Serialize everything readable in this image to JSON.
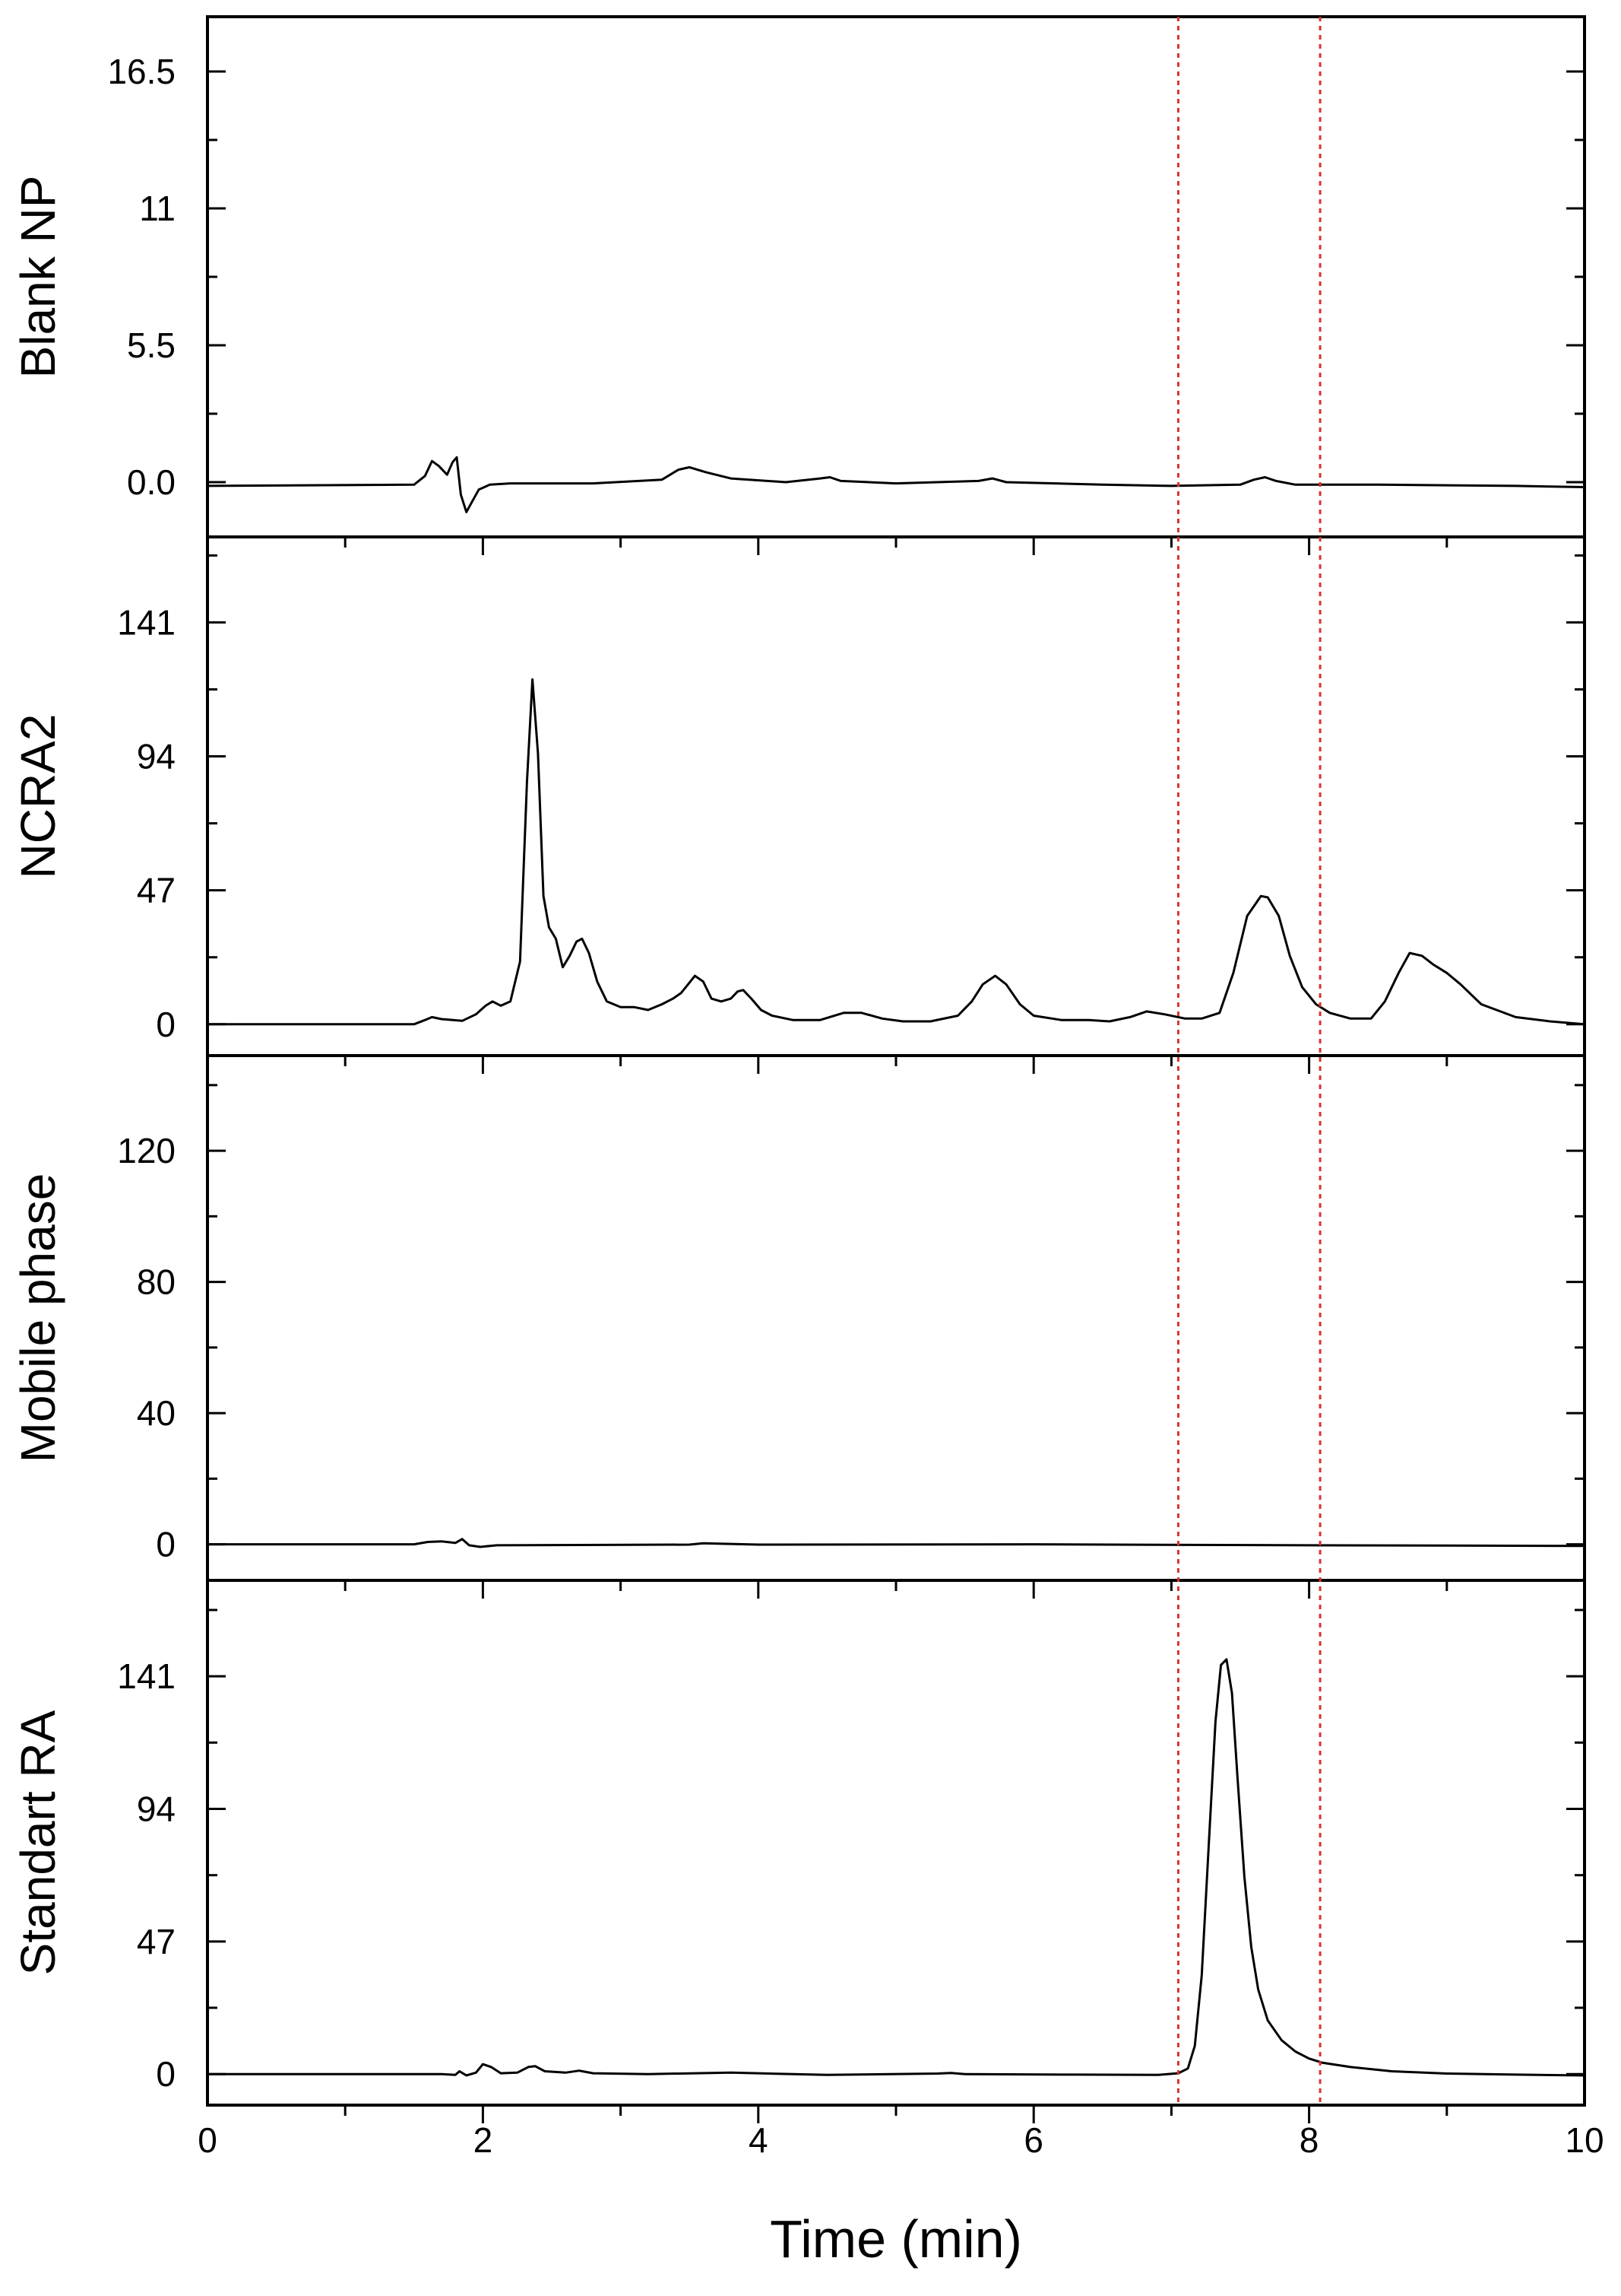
{
  "chart_data": {
    "type": "line",
    "layout": "stacked panels sharing x axis",
    "xlabel": "Time (min)",
    "xlim": [
      0,
      10
    ],
    "x_ticks": [
      0,
      2,
      4,
      6,
      8,
      10
    ],
    "x_tick_labels": [
      "0",
      "2",
      "4",
      "6",
      "8",
      "10"
    ],
    "reference_lines": {
      "x": [
        7.05,
        8.08
      ],
      "style": "dotted",
      "color": "#e03030"
    },
    "line_color": "#000000",
    "grid": false,
    "legend": "none",
    "panels": [
      {
        "ylabel": "Blank NP",
        "ylim": [
          -2.2,
          18.7
        ],
        "y_ticks": [
          0.0,
          5.5,
          11,
          16.5
        ],
        "y_tick_labels": [
          "0.0",
          "5.5",
          "11",
          "16.5"
        ],
        "series": [
          {
            "x": [
              0,
              1.5,
              1.58,
              1.63,
              1.68,
              1.74,
              1.78,
              1.81,
              1.84,
              1.88,
              1.92,
              1.97,
              2.05,
              2.2,
              2.8,
              3.3,
              3.42,
              3.5,
              3.62,
              3.8,
              4.2,
              4.45,
              4.52,
              4.6,
              5.0,
              5.6,
              5.7,
              5.8,
              6.5,
              7.0,
              7.5,
              7.6,
              7.68,
              7.76,
              7.9,
              8.5,
              9.5,
              10
            ],
            "y": [
              -0.15,
              -0.1,
              0.25,
              0.85,
              0.65,
              0.3,
              0.8,
              1.0,
              -0.5,
              -1.2,
              -0.8,
              -0.3,
              -0.1,
              -0.05,
              -0.05,
              0.1,
              0.5,
              0.6,
              0.4,
              0.15,
              0.0,
              0.15,
              0.2,
              0.05,
              -0.05,
              0.05,
              0.15,
              0.0,
              -0.1,
              -0.15,
              -0.1,
              0.1,
              0.2,
              0.05,
              -0.1,
              -0.1,
              -0.15,
              -0.2
            ]
          }
        ]
      },
      {
        "ylabel": "NCRA2",
        "ylim": [
          -11,
          171
        ],
        "y_ticks": [
          0,
          47,
          94,
          141
        ],
        "y_tick_labels": [
          "0",
          "47",
          "94",
          "141"
        ],
        "series": [
          {
            "x": [
              0,
              1.5,
              1.58,
              1.63,
              1.7,
              1.85,
              1.95,
              2.02,
              2.07,
              2.13,
              2.2,
              2.27,
              2.32,
              2.36,
              2.4,
              2.44,
              2.48,
              2.53,
              2.58,
              2.63,
              2.68,
              2.72,
              2.77,
              2.83,
              2.9,
              3.0,
              3.1,
              3.2,
              3.3,
              3.38,
              3.44,
              3.49,
              3.54,
              3.6,
              3.66,
              3.73,
              3.8,
              3.85,
              3.89,
              3.95,
              4.02,
              4.1,
              4.25,
              4.45,
              4.62,
              4.75,
              4.9,
              5.05,
              5.25,
              5.45,
              5.55,
              5.63,
              5.72,
              5.8,
              5.9,
              6.0,
              6.2,
              6.4,
              6.55,
              6.7,
              6.82,
              6.95,
              7.1,
              7.22,
              7.35,
              7.45,
              7.55,
              7.65,
              7.7,
              7.78,
              7.86,
              7.95,
              8.05,
              8.15,
              8.3,
              8.45,
              8.55,
              8.65,
              8.73,
              8.82,
              8.9,
              9.0,
              9.1,
              9.25,
              9.5,
              9.75,
              10
            ],
            "y": [
              0,
              0,
              1.5,
              2.5,
              1.8,
              1.2,
              3.5,
              6.5,
              8,
              6.5,
              8,
              22,
              85,
              121,
              95,
              45,
              34,
              30,
              20,
              24,
              29,
              30,
              25,
              15,
              8,
              6,
              6,
              5,
              7,
              9,
              11,
              14,
              17,
              15,
              9,
              8,
              9,
              11.5,
              12,
              9,
              5,
              3,
              1.5,
              1.5,
              4,
              4,
              2,
              1,
              1,
              3,
              8,
              14,
              17,
              14,
              7,
              3,
              1.5,
              1.5,
              1,
              2.5,
              4.5,
              3.5,
              2,
              2,
              4,
              18,
              38,
              45,
              44.5,
              38,
              24,
              13,
              7,
              4,
              2,
              2,
              8,
              18,
              25,
              24,
              21,
              18,
              14,
              7,
              2.5,
              1,
              0
            ]
          }
        ]
      },
      {
        "ylabel": "Mobile phase",
        "ylim": [
          -11,
          149
        ],
        "y_ticks": [
          0,
          40,
          80,
          120
        ],
        "y_tick_labels": [
          "0",
          "40",
          "80",
          "120"
        ],
        "series": [
          {
            "x": [
              0,
              1.5,
              1.6,
              1.7,
              1.8,
              1.85,
              1.9,
              1.98,
              2.1,
              3.5,
              3.6,
              4.0,
              6.0,
              8.0,
              10
            ],
            "y": [
              0,
              0,
              0.7,
              0.9,
              0.4,
              1.6,
              -0.3,
              -0.8,
              -0.3,
              -0.1,
              0.3,
              -0.1,
              0,
              -0.3,
              -0.5
            ]
          }
        ]
      },
      {
        "ylabel": "Standart RA",
        "ylim": [
          -11,
          175
        ],
        "y_ticks": [
          0,
          47,
          94,
          141
        ],
        "y_tick_labels": [
          "0",
          "47",
          "94",
          "141"
        ],
        "series": [
          {
            "x": [
              0,
              1.7,
              1.8,
              1.83,
              1.88,
              1.95,
              2.0,
              2.06,
              2.13,
              2.25,
              2.33,
              2.38,
              2.45,
              2.6,
              2.7,
              2.8,
              3.2,
              3.8,
              4.5,
              5.3,
              5.4,
              5.5,
              6.3,
              6.9,
              7.05,
              7.12,
              7.17,
              7.22,
              7.27,
              7.32,
              7.36,
              7.4,
              7.44,
              7.48,
              7.53,
              7.58,
              7.63,
              7.7,
              7.8,
              7.9,
              8.0,
              8.1,
              8.3,
              8.6,
              9.0,
              9.5,
              10
            ],
            "y": [
              0,
              0,
              -0.3,
              1,
              -0.5,
              0.5,
              3.5,
              2.5,
              0.3,
              0.5,
              2.5,
              2.8,
              1,
              0.5,
              1.2,
              0.3,
              0,
              0.5,
              -0.3,
              0.2,
              0.4,
              0,
              -0.2,
              -0.3,
              0.3,
              2,
              10,
              35,
              80,
              125,
              145,
              147,
              135,
              105,
              70,
              45,
              30,
              19,
              12,
              8,
              5.5,
              4,
              2.5,
              1,
              0.2,
              -0.2,
              -0.5
            ]
          }
        ]
      }
    ]
  }
}
